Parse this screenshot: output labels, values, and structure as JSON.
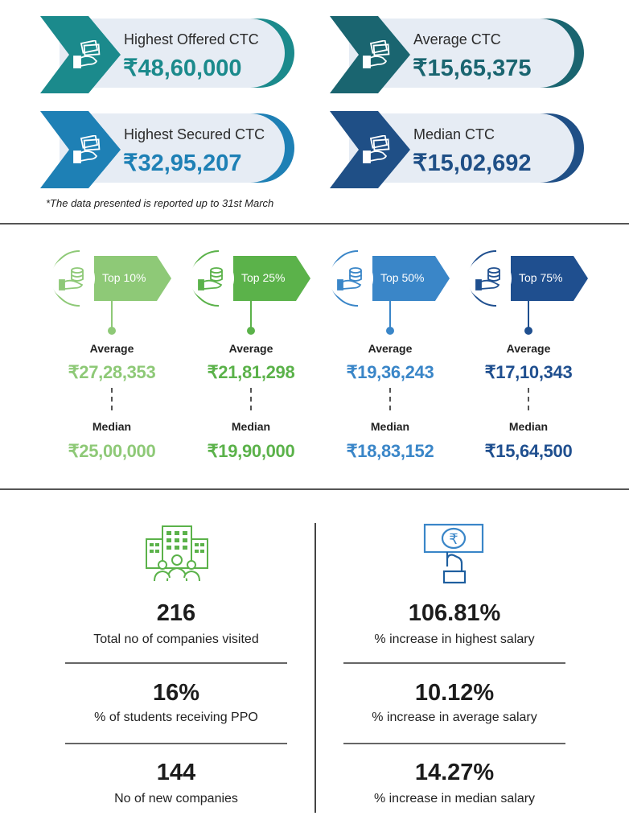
{
  "ctc_cards": [
    {
      "label": "Highest Offered CTC",
      "value": "₹48,60,000",
      "color": "#1b8a8c"
    },
    {
      "label": "Average CTC",
      "value": "₹15,65,375",
      "color": "#1a6570"
    },
    {
      "label": "Highest Secured CTC",
      "value": "₹32,95,207",
      "color": "#1e80b5"
    },
    {
      "label": "Median CTC",
      "value": "₹15,02,692",
      "color": "#1f4f86"
    }
  ],
  "note": "*The data presented is reported up to 31st March",
  "percentiles": [
    {
      "tag": "Top 10%",
      "average_label": "Average",
      "average": "₹27,28,353",
      "median_label": "Median",
      "median": "₹25,00,000",
      "color": "#8ec977"
    },
    {
      "tag": "Top 25%",
      "average_label": "Average",
      "average": "₹21,81,298",
      "median_label": "Median",
      "median": "₹19,90,000",
      "color": "#5bb24a"
    },
    {
      "tag": "Top 50%",
      "average_label": "Average",
      "average": "₹19,36,243",
      "median_label": "Median",
      "median": "₹18,83,152",
      "color": "#3a86c8"
    },
    {
      "tag": "Top 75%",
      "average_label": "Average",
      "average": "₹17,10,343",
      "median_label": "Median",
      "median": "₹15,64,500",
      "color": "#1f4f8f"
    }
  ],
  "stats_left": [
    {
      "value": "216",
      "label": "Total no of companies visited"
    },
    {
      "value": "16%",
      "label": "% of students receiving PPO"
    },
    {
      "value": "144",
      "label": "No of new companies"
    }
  ],
  "stats_right": [
    {
      "value": "106.81%",
      "label": "% increase in highest salary"
    },
    {
      "value": "10.12%",
      "label": "% increase in average salary"
    },
    {
      "value": "14.27%",
      "label": "% increase in median salary"
    }
  ],
  "icons": {
    "card_icon": "money-hand-icon",
    "badge_icon": "coins-hand-icon",
    "left_icon": "buildings-people-icon",
    "right_icon": "rupee-note-hand-icon"
  }
}
